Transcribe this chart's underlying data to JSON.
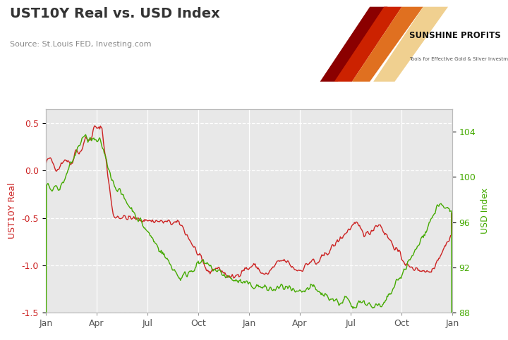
{
  "title": "UST10Y Real vs. USD Index",
  "source": "Source: St.Louis FED, Investing.com",
  "left_label": "UST10Y Real",
  "right_label": "USD Index",
  "left_color": "#cc2222",
  "right_color": "#44aa00",
  "left_ylim": [
    -1.5,
    0.65
  ],
  "right_ylim": [
    88,
    106
  ],
  "left_yticks": [
    0.5,
    0.0,
    -0.5,
    -1.0,
    -1.5
  ],
  "right_yticks": [
    104,
    100,
    96,
    92,
    88
  ],
  "x_tick_labels": [
    "Jan",
    "Apr",
    "Jul",
    "Oct",
    "Jan",
    "Apr",
    "Jul",
    "Oct",
    "Jan"
  ],
  "bg_color": "#ffffff",
  "plot_bg_color": "#e8e8e8",
  "title_color": "#333333",
  "source_color": "#888888",
  "grid_color": "#ffffff",
  "logo_text": "SUNSHINE PROFITS",
  "logo_subtext": "Tools for Effective Gold & Silver Investments"
}
